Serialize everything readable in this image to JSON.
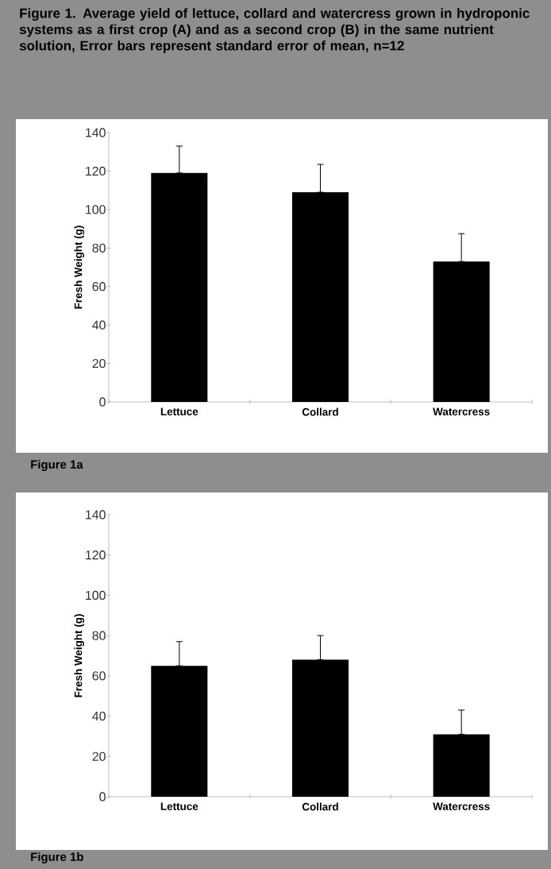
{
  "chart_data": [
    {
      "type": "bar",
      "title": "Figure 1. Average yield of lettuce, collard and watercress grown in hydroponic systems as a first crop (A) and as a second crop (B) in the same nutrient solution, Error bars represent standard error of mean, n=12",
      "ylabel": "Fresh Weight (g)",
      "categories": [
        "Lettuce",
        "Collard",
        "Watercress"
      ],
      "values": [
        119,
        109,
        73
      ],
      "errors": [
        [
          119,
          133
        ],
        [
          109,
          123.5
        ],
        [
          73,
          87.5
        ]
      ],
      "color": "#000000",
      "ylim": [
        0,
        140
      ],
      "yticks": [
        0,
        20,
        40,
        60,
        80,
        100,
        120,
        140
      ],
      "annotations": [
        "Figure 1a"
      ]
    },
    {
      "type": "bar",
      "ylabel": "Fresh Weight (g)",
      "categories": [
        "Lettuce",
        "Collard",
        "Watercress"
      ],
      "values": [
        65,
        68,
        31
      ],
      "errors": [
        [
          65,
          77
        ],
        [
          68,
          80
        ],
        [
          31,
          43
        ]
      ],
      "color": "#000000",
      "ylim": [
        0,
        140
      ],
      "yticks": [
        0,
        20,
        40,
        60,
        80,
        100,
        120,
        140
      ],
      "annotations": [
        "Figure 1b"
      ]
    }
  ]
}
